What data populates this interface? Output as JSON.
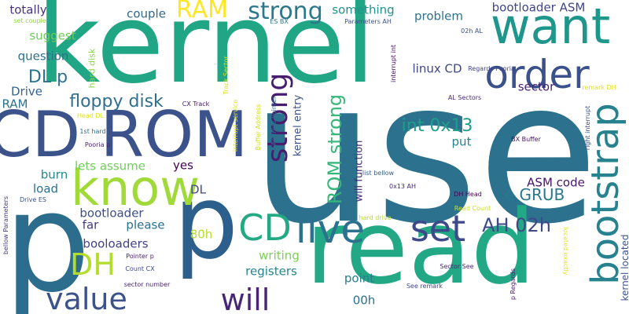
{
  "words": [
    {
      "text": "use",
      "color": "#2c728e"
    },
    {
      "text": "p",
      "color": "#2c6d8e"
    },
    {
      "text": "kernel",
      "color": "#21a685"
    },
    {
      "text": "read",
      "color": "#22a884"
    },
    {
      "text": "p",
      "color": "#2d5f8c"
    },
    {
      "text": "CD ROM",
      "color": "#3b528b"
    },
    {
      "text": "know",
      "color": "#a0da39"
    },
    {
      "text": "want",
      "color": "#1f968b"
    },
    {
      "text": "order",
      "color": "#3b518b"
    },
    {
      "text": "bootstrap",
      "color": "#26828e"
    },
    {
      "text": "live",
      "color": "#2c718e"
    },
    {
      "text": "set",
      "color": "#3e4989"
    },
    {
      "text": "CD",
      "color": "#23a983"
    },
    {
      "text": "strong",
      "color": "#471d6f"
    },
    {
      "text": "value",
      "color": "#3b528b"
    },
    {
      "text": "will",
      "color": "#482576"
    },
    {
      "text": "DH",
      "color": "#b2dd2d"
    },
    {
      "text": "RAM",
      "color": "#fde725"
    },
    {
      "text": "strong",
      "color": "#2a778e"
    },
    {
      "text": "ROM strong",
      "color": "#35b779"
    },
    {
      "text": "AH 02h",
      "color": "#3e4989"
    },
    {
      "text": "int 0x13",
      "color": "#1f9e89"
    },
    {
      "text": "floppy disk",
      "color": "#2e6f8e"
    },
    {
      "text": "DL p",
      "color": "#2c728e"
    },
    {
      "text": "e GRUB",
      "color": "#2a788e"
    },
    {
      "text": "bootloader ASM",
      "color": "#404688"
    },
    {
      "text": "couple",
      "color": "#31688e"
    },
    {
      "text": "totally",
      "color": "#46337f"
    },
    {
      "text": "suggest",
      "color": "#6ccd5a"
    },
    {
      "text": "question",
      "color": "#2d708e"
    },
    {
      "text": "something",
      "color": "#21918c"
    },
    {
      "text": "problem",
      "color": "#2c728e"
    },
    {
      "text": "linux CD",
      "color": "#3f4889"
    },
    {
      "text": "sector",
      "color": "#482173"
    },
    {
      "text": "Drive",
      "color": "#33638d"
    },
    {
      "text": "RAM",
      "color": "#2b758e"
    },
    {
      "text": "kernel entry",
      "color": "#3b528b"
    },
    {
      "text": "will function",
      "color": "#472c7a"
    },
    {
      "text": "put",
      "color": "#25848e"
    },
    {
      "text": "ASM code",
      "color": "#481467"
    },
    {
      "text": "yes",
      "color": "#440154"
    },
    {
      "text": "lets assume",
      "color": "#6ece58"
    },
    {
      "text": "burn",
      "color": "#23898e"
    },
    {
      "text": "load",
      "color": "#2d718e"
    },
    {
      "text": "DL",
      "color": "#3e4a89"
    },
    {
      "text": "bootloader",
      "color": "#3c4f8a"
    },
    {
      "text": "far",
      "color": "#443a83"
    },
    {
      "text": "please",
      "color": "#2d708e"
    },
    {
      "text": "booloaders",
      "color": "#414287"
    },
    {
      "text": "80h",
      "color": "#b5de2b"
    },
    {
      "text": "writing",
      "color": "#7ad151"
    },
    {
      "text": "registers",
      "color": "#25858e"
    },
    {
      "text": "point",
      "color": "#277e8e"
    },
    {
      "text": "00h",
      "color": "#2c718e"
    },
    {
      "text": "kernel located",
      "color": "#3b528b"
    },
    {
      "text": "hard disk",
      "color": "#8bd646"
    },
    {
      "text": "Track Sector",
      "color": "#d8e219"
    },
    {
      "text": "interrupt service",
      "color": "#e2e418"
    },
    {
      "text": "Address Pointer",
      "color": "#31688e"
    },
    {
      "text": "Buffer Address",
      "color": "#d0e11c"
    },
    {
      "text": "interrupt int",
      "color": "#460b5e"
    },
    {
      "text": "right interrupt",
      "color": "#3a548c"
    },
    {
      "text": "bellow Parameters",
      "color": "#453781"
    },
    {
      "text": "p Regards",
      "color": "#481c6e"
    },
    {
      "text": "located exactly",
      "color": "#e5e419"
    },
    {
      "text": "set couple",
      "color": "#93d741"
    },
    {
      "text": "ES BX",
      "color": "#2a778e"
    },
    {
      "text": "Parameters AH",
      "color": "#3b528b"
    },
    {
      "text": "02h AL",
      "color": "#3b528b"
    },
    {
      "text": "AL Sectors",
      "color": "#482878"
    },
    {
      "text": "Regards Pooria",
      "color": "#414487"
    },
    {
      "text": "remark DH",
      "color": "#dfe318"
    },
    {
      "text": "Head DL",
      "color": "#dde318"
    },
    {
      "text": "CX Track",
      "color": "#481a6c"
    },
    {
      "text": "1st hard",
      "color": "#2d708e"
    },
    {
      "text": "Pooria p",
      "color": "#482374"
    },
    {
      "text": "Drive ES",
      "color": "#3b528b"
    },
    {
      "text": "BX Buffer",
      "color": "#471063"
    },
    {
      "text": "list bellow",
      "color": "#365d8d"
    },
    {
      "text": "0x13 AH",
      "color": "#482576"
    },
    {
      "text": "DH Head",
      "color": "#440256"
    },
    {
      "text": "Read Count",
      "color": "#cde11d"
    },
    {
      "text": "hard drive",
      "color": "#b8de29"
    },
    {
      "text": "Pointer p",
      "color": "#482475"
    },
    {
      "text": "Count CX",
      "color": "#3e4989"
    },
    {
      "text": "sector number",
      "color": "#481f70"
    },
    {
      "text": "Sector See",
      "color": "#482677"
    },
    {
      "text": "See remark",
      "color": "#3f4889"
    }
  ]
}
